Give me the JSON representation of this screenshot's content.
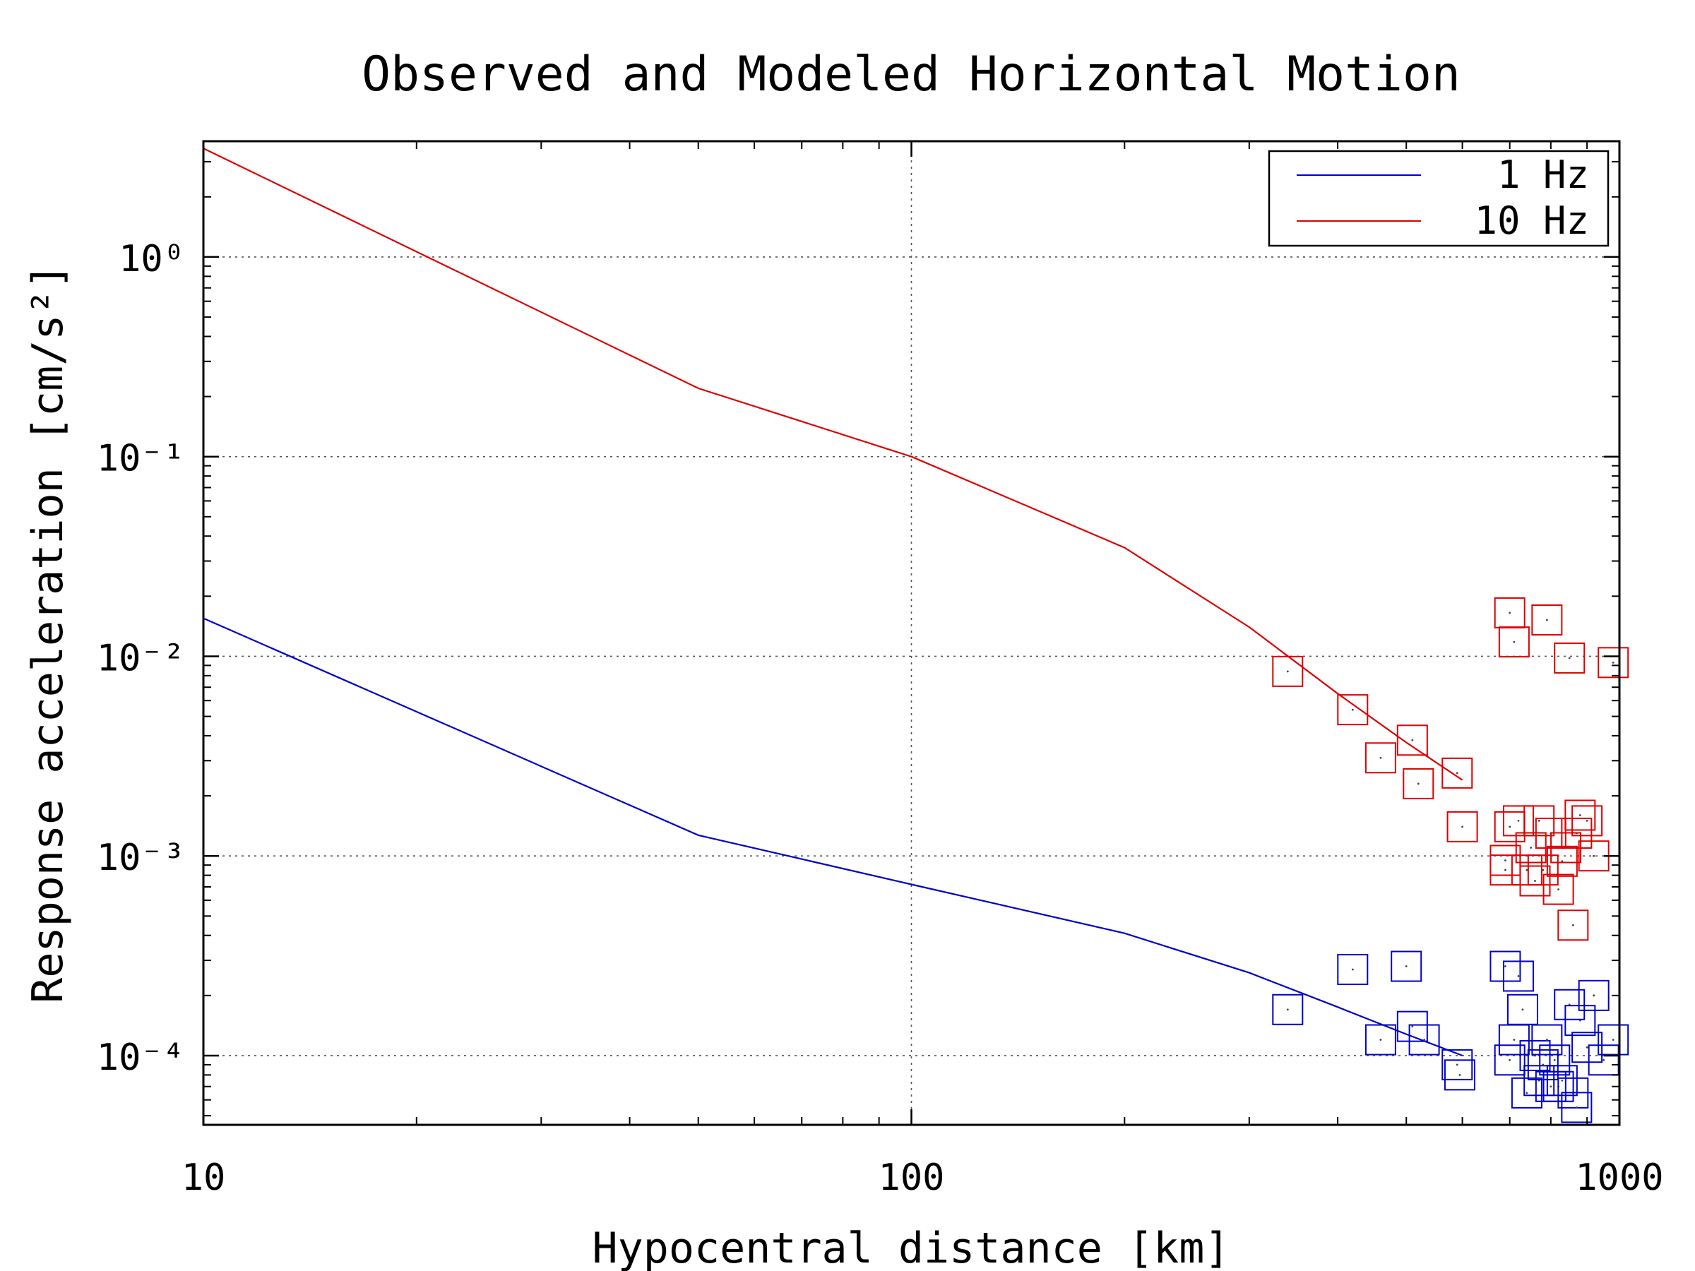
{
  "chart_data": {
    "type": "scatter",
    "title": "Observed and Modeled Horizontal Motion",
    "xlabel": "Hypocentral distance [km]",
    "ylabel": "Response acceleration [cm/s²]",
    "xscale": "log",
    "yscale": "log",
    "xlim": [
      10,
      1000
    ],
    "ylim": [
      4.5e-05,
      3.8
    ],
    "x_ticks": [
      10,
      100,
      1000
    ],
    "x_tick_labels": [
      "10",
      "100",
      "1000"
    ],
    "y_ticks": [
      0.0001,
      0.001,
      0.01,
      0.1,
      1
    ],
    "y_tick_labels": [
      "10⁻⁴",
      "10⁻³",
      "10⁻²",
      "10⁻¹",
      "10⁰"
    ],
    "grid": true,
    "legend_position": "top-right",
    "colors": {
      "1 Hz": "#0000cc",
      "10 Hz": "#dd0000"
    },
    "series": [
      {
        "name": "1 Hz",
        "model_x": [
          10,
          50,
          100,
          200,
          300,
          400,
          500,
          600
        ],
        "model_y": [
          0.0155,
          0.00127,
          0.00072,
          0.00041,
          0.00026,
          0.000175,
          0.000128,
          0.0001
        ],
        "observed_x": [
          340,
          420,
          460,
          500,
          510,
          530,
          590,
          595,
          690,
          700,
          710,
          720,
          730,
          740,
          760,
          770,
          780,
          790,
          800,
          810,
          820,
          830,
          850,
          860,
          870,
          880,
          900,
          920,
          950,
          980
        ],
        "observed_y": [
          0.00017,
          0.00027,
          0.00012,
          0.00028,
          0.00014,
          0.00012,
          9e-05,
          8e-05,
          0.00028,
          9.5e-05,
          0.00012,
          0.00025,
          0.00017,
          6.5e-05,
          0.0001,
          7.5e-05,
          9e-05,
          0.00012,
          7e-05,
          9.5e-05,
          7e-05,
          7.5e-05,
          0.00018,
          6.5e-05,
          5.5e-05,
          0.00015,
          0.00011,
          0.0002,
          9.5e-05,
          0.00012
        ]
      },
      {
        "name": "10 Hz",
        "model_x": [
          10,
          50,
          100,
          200,
          300,
          400,
          500,
          600
        ],
        "model_y": [
          3.5,
          0.22,
          0.1,
          0.035,
          0.014,
          0.0065,
          0.0037,
          0.0024
        ],
        "observed_x": [
          340,
          420,
          460,
          510,
          520,
          590,
          600,
          690,
          690,
          700,
          700,
          710,
          720,
          740,
          750,
          760,
          770,
          780,
          790,
          800,
          820,
          830,
          840,
          850,
          860,
          870,
          880,
          900,
          920,
          980
        ],
        "observed_y": [
          0.0084,
          0.0054,
          0.0031,
          0.0038,
          0.0023,
          0.0026,
          0.0014,
          0.00095,
          0.00085,
          0.0014,
          0.0165,
          0.0118,
          0.0015,
          0.00085,
          0.0011,
          0.00075,
          0.0015,
          0.00085,
          0.0152,
          0.0013,
          0.00068,
          0.00094,
          0.0011,
          0.0098,
          0.00045,
          0.0013,
          0.0016,
          0.0015,
          0.001,
          0.0093
        ]
      }
    ]
  }
}
